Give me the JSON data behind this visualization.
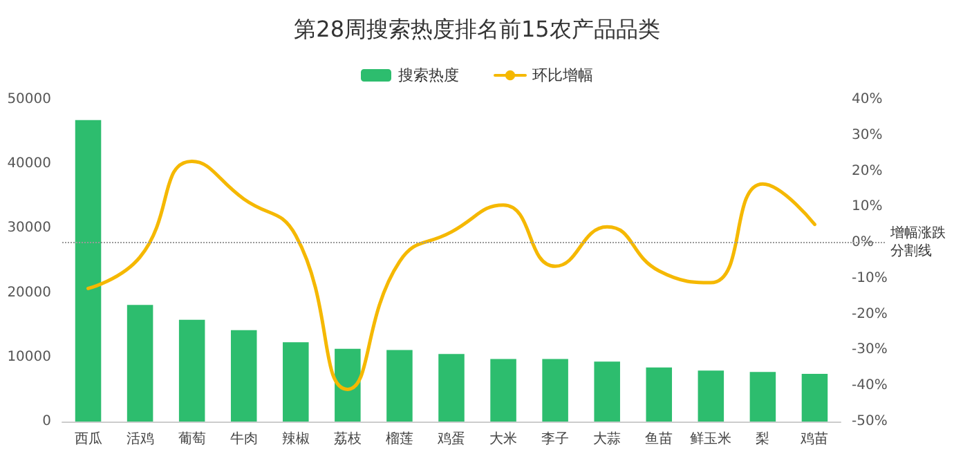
{
  "chart_data": {
    "type": "bar",
    "title": "第28周搜索热度排名前15农产品品类",
    "categories": [
      "西瓜",
      "活鸡",
      "葡萄",
      "牛肉",
      "辣椒",
      "荔枝",
      "榴莲",
      "鸡蛋",
      "大米",
      "李子",
      "大蒜",
      "鱼苗",
      "鲜玉米",
      "梨",
      "鸡苗"
    ],
    "series": [
      {
        "name": "搜索热度",
        "color": "#2dbd6e",
        "values": [
          46800,
          18100,
          15800,
          14200,
          12300,
          11300,
          11100,
          10500,
          9700,
          9700,
          9300,
          8400,
          7900,
          7700,
          7400
        ]
      },
      {
        "name": "环比增幅",
        "type": "line",
        "axis": "y2",
        "color": "#f5b800",
        "values": [
          -12.8,
          -4,
          22.7,
          12.2,
          2,
          -41,
          -5.3,
          3,
          10.5,
          -6.6,
          4.4,
          -7.9,
          -11.2,
          16.4,
          5.1
        ]
      }
    ],
    "ylim": [
      0,
      50000
    ],
    "yticks": [
      0,
      10000,
      20000,
      30000,
      40000,
      50000
    ],
    "y2lim": [
      -50,
      40
    ],
    "y2ticks": [
      {
        "value": -50,
        "label": "-50%"
      },
      {
        "value": -40,
        "label": "-40%"
      },
      {
        "value": -30,
        "label": "-30%"
      },
      {
        "value": -20,
        "label": "-20%"
      },
      {
        "value": -10,
        "label": "-10%"
      },
      {
        "value": 0,
        "label": "0%"
      },
      {
        "value": 10,
        "label": "10%"
      },
      {
        "value": 20,
        "label": "20%"
      },
      {
        "value": 30,
        "label": "30%"
      },
      {
        "value": 40,
        "label": "40%"
      }
    ],
    "ref_lines": [
      {
        "axis": "y2",
        "value": 0,
        "label": "增幅涨跌分割线",
        "color": "#999999",
        "line_style": "dotted"
      }
    ],
    "legend": "top",
    "grid": false,
    "marker": "none",
    "line_style": "solid"
  }
}
